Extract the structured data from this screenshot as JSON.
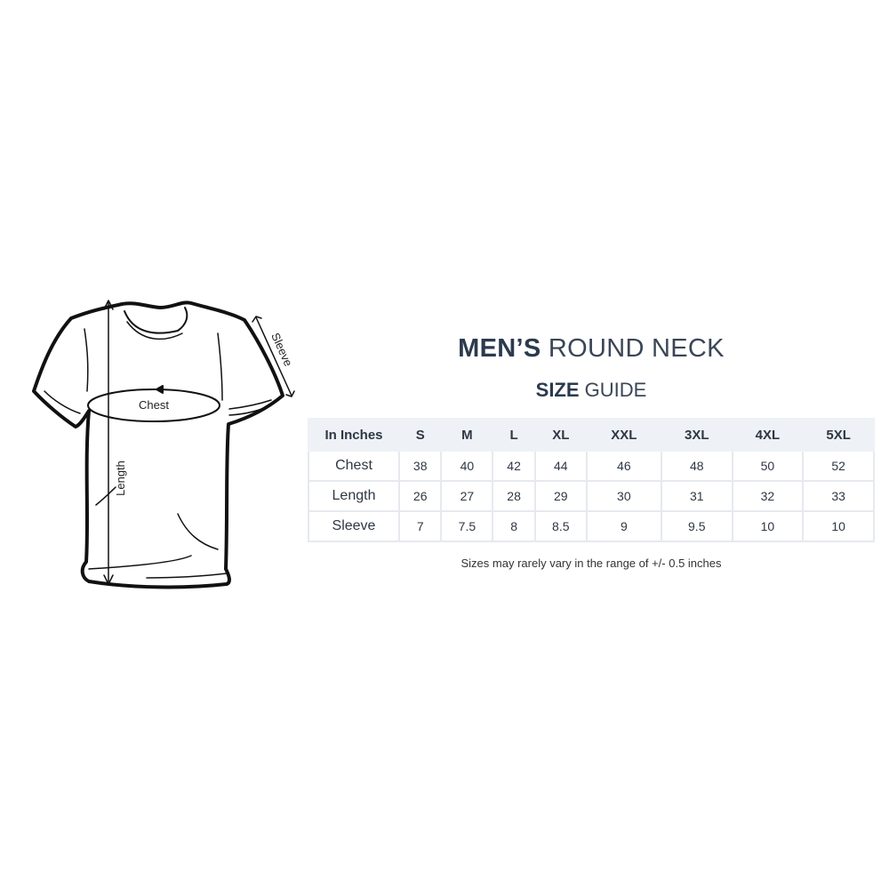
{
  "title": {
    "bold": "MEN’S",
    "light": "ROUND NECK"
  },
  "subtitle": {
    "bold": "SIZE",
    "light": "GUIDE"
  },
  "diagram": {
    "labels": {
      "chest": "Chest",
      "length": "Length",
      "sleeve": "Sleeve"
    },
    "icon": "t-shirt-measurement-diagram"
  },
  "table": {
    "headers": [
      "In Inches",
      "S",
      "M",
      "L",
      "XL",
      "XXL",
      "3XL",
      "4XL",
      "5XL"
    ],
    "rows": [
      {
        "label": "Chest",
        "values": [
          "38",
          "40",
          "42",
          "44",
          "46",
          "48",
          "50",
          "52"
        ]
      },
      {
        "label": "Length",
        "values": [
          "26",
          "27",
          "28",
          "29",
          "30",
          "31",
          "32",
          "33"
        ]
      },
      {
        "label": "Sleeve",
        "values": [
          "7",
          "7.5",
          "8",
          "8.5",
          "9",
          "9.5",
          "10",
          "10"
        ]
      }
    ]
  },
  "note": "Sizes may rarely vary in the range of +/- 0.5 inches",
  "colors": {
    "title": "#2b3a4e",
    "header_bg": "#eef1f5",
    "border": "#e6e9ee"
  }
}
